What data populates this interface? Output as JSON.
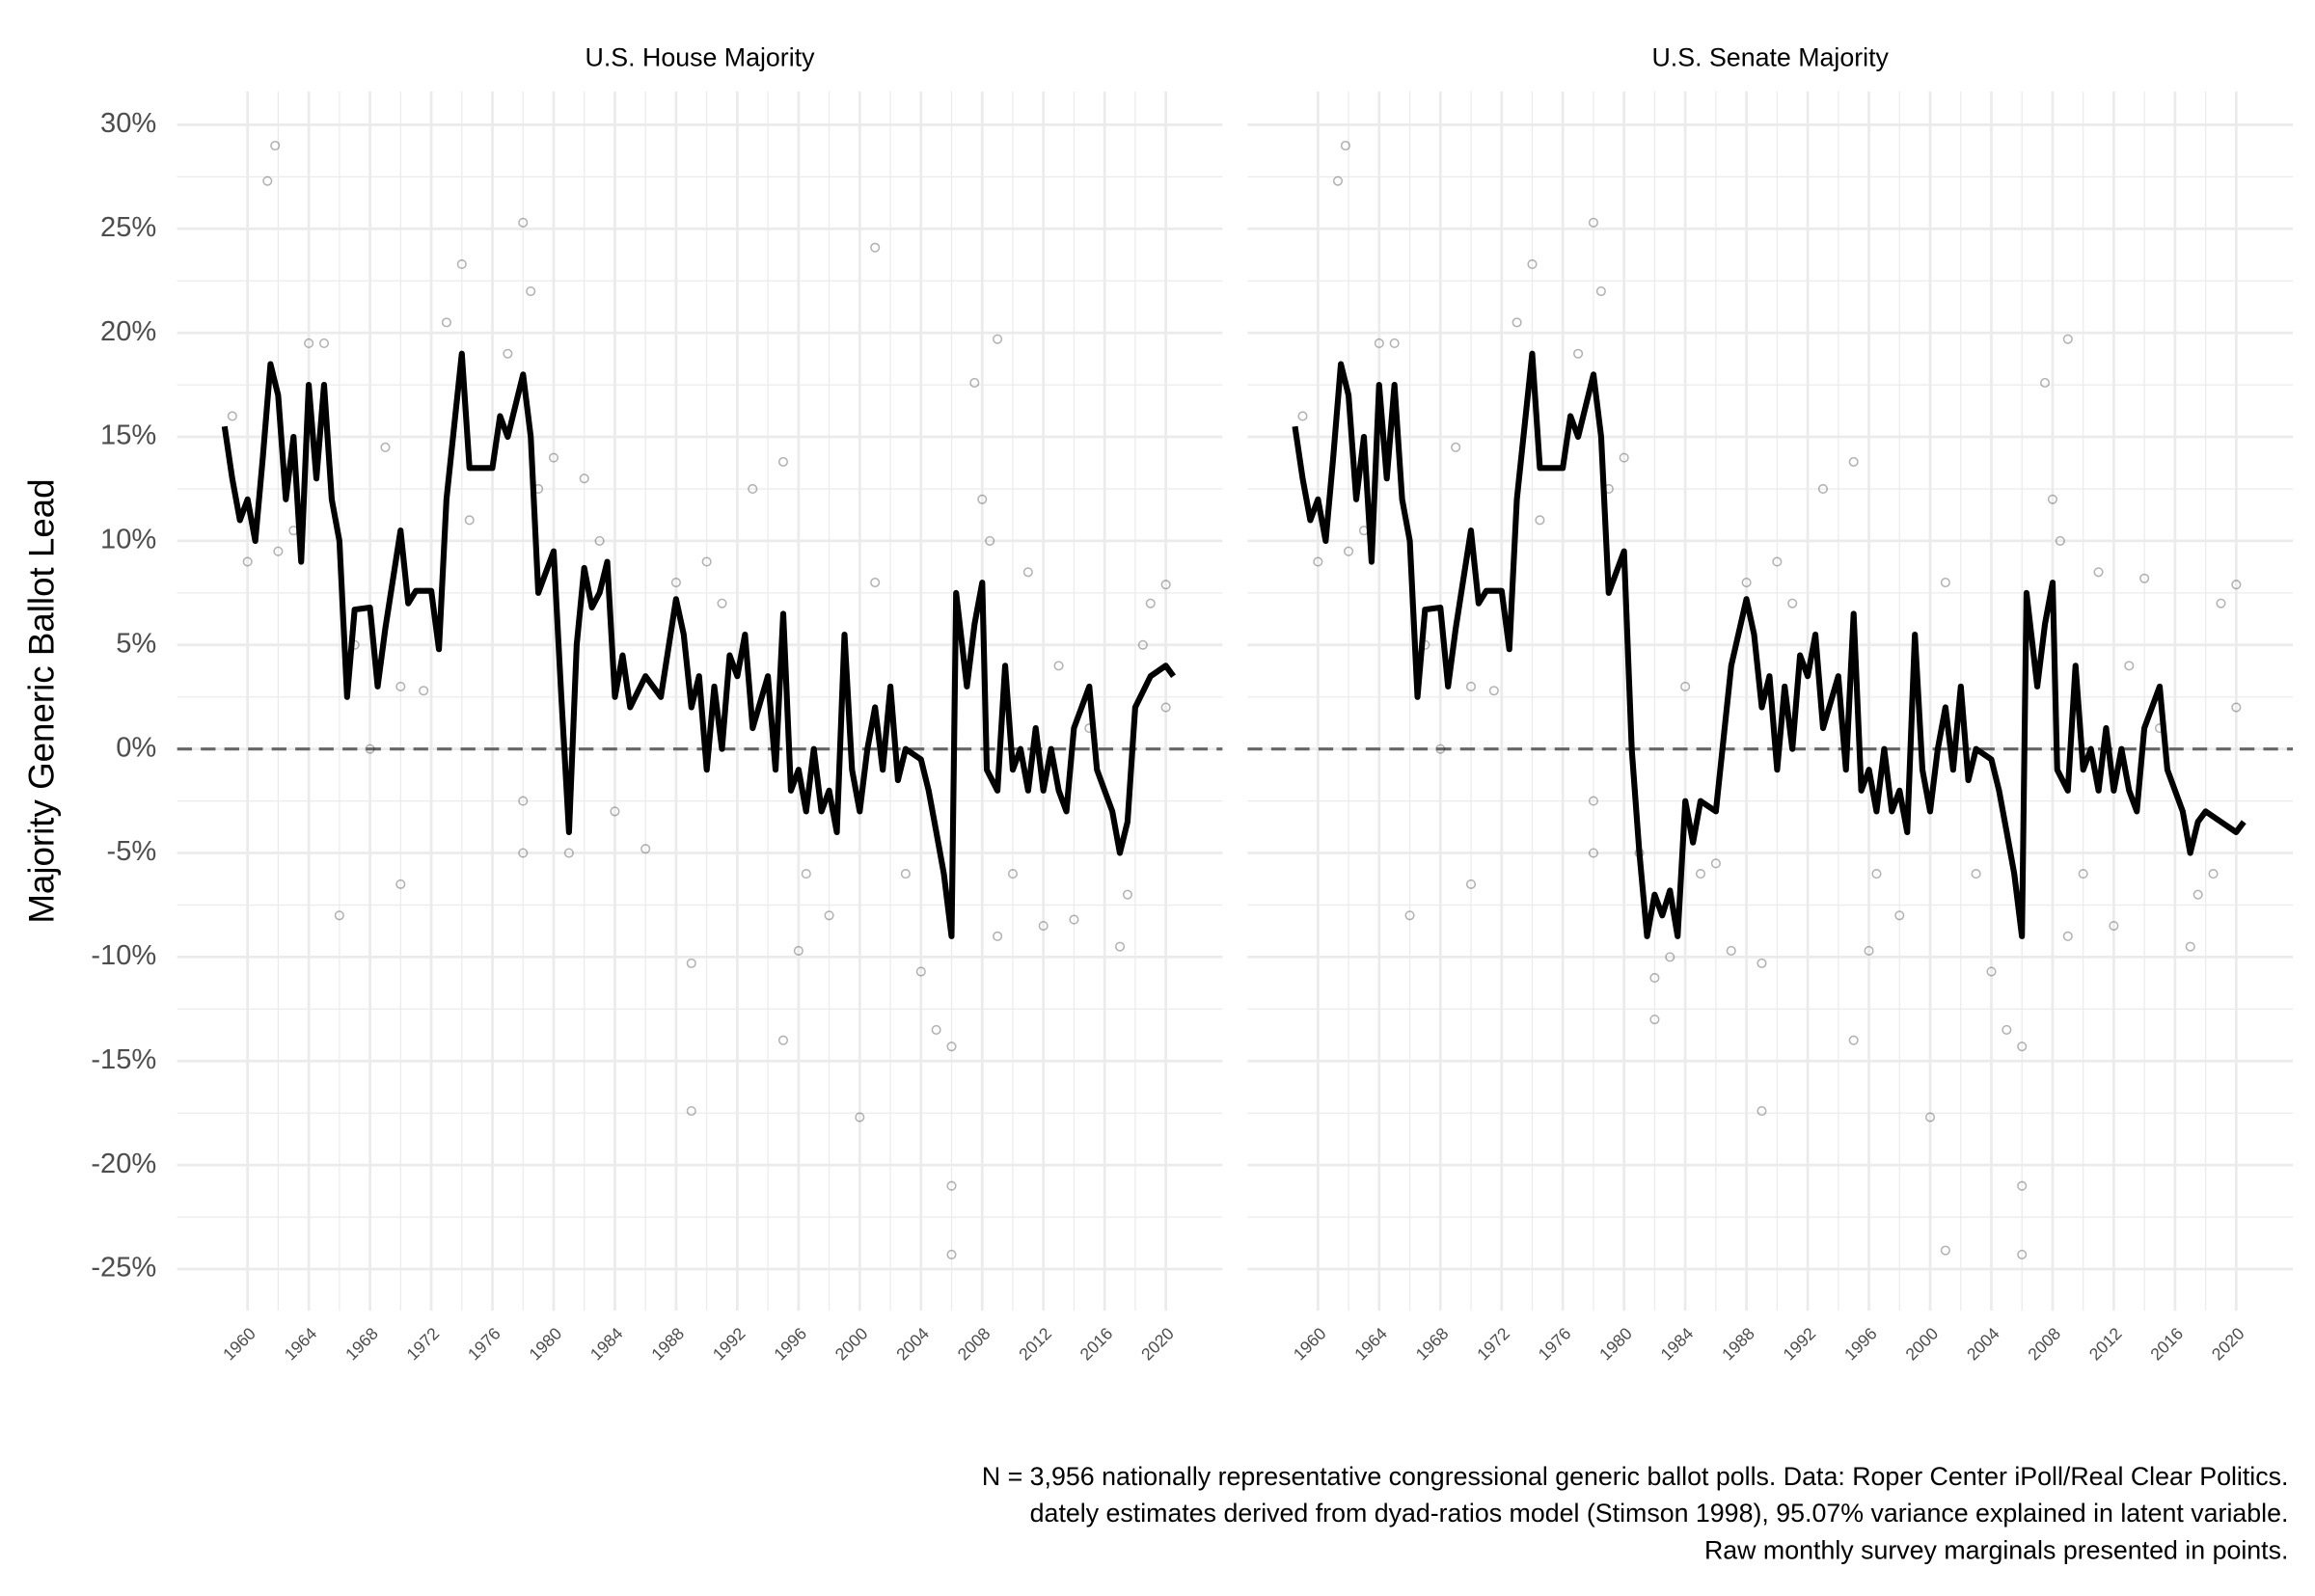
{
  "ylabel": "Majority Generic Ballot Lead",
  "caption": [
    "N = 3,956 nationally representative congressional generic ballot polls. Data: Roper Center iPoll/Real Clear Politics.",
    "dately estimates derived from dyad-ratios model (Stimson 1998), 95.07% variance explained in latent variable.",
    "Raw monthly survey marginals presented in points."
  ],
  "chart_data": [
    {
      "type": "line",
      "title": "U.S. House Majority",
      "xlim": [
        1955.4,
        2023.7
      ],
      "ylim": [
        -27,
        31.6
      ],
      "xticks": [
        1960,
        1964,
        1968,
        1972,
        1976,
        1980,
        1984,
        1988,
        1992,
        1996,
        2000,
        2004,
        2008,
        2012,
        2016,
        2020
      ],
      "yticks": [
        {
          "value": -25,
          "label": "-25%"
        },
        {
          "value": -20,
          "label": "-20%"
        },
        {
          "value": -15,
          "label": "-15%"
        },
        {
          "value": -10,
          "label": "-10%"
        },
        {
          "value": -5,
          "label": "-5%"
        },
        {
          "value": 0,
          "label": "0%"
        },
        {
          "value": 5,
          "label": "5%"
        },
        {
          "value": 10,
          "label": "10%"
        },
        {
          "value": 15,
          "label": "15%"
        },
        {
          "value": 20,
          "label": "20%"
        },
        {
          "value": 25,
          "label": "25%"
        },
        {
          "value": 30,
          "label": "30%"
        }
      ],
      "grid": true,
      "hline": 0,
      "line": {
        "color": "#000000",
        "x": [
          1958.5,
          1959,
          1959.5,
          1960,
          1960.5,
          1961,
          1961.5,
          1962,
          1962.5,
          1963,
          1963.5,
          1964,
          1964.5,
          1965,
          1965.5,
          1966,
          1966.5,
          1967,
          1968,
          1968.5,
          1969,
          1970,
          1970.5,
          1971,
          1972,
          1972.5,
          1973,
          1974,
          1974.5,
          1976,
          1976.5,
          1977,
          1978,
          1978.5,
          1979,
          1980,
          1980.5,
          1981,
          1981.5,
          1982,
          1982.5,
          1983,
          1983.5,
          1984,
          1984.5,
          1985,
          1986,
          1987,
          1988,
          1988.5,
          1989,
          1989.5,
          1990,
          1990.5,
          1991,
          1991.5,
          1992,
          1992.5,
          1993,
          1994,
          1994.5,
          1995,
          1995.5,
          1996,
          1996.5,
          1997,
          1997.5,
          1998,
          1998.5,
          1999,
          1999.5,
          2000,
          2000.5,
          2001,
          2001.5,
          2002,
          2002.5,
          2003,
          2004,
          2004.5,
          2005,
          2005.5,
          2006,
          2006.3,
          2007,
          2007.5,
          2008,
          2008.3,
          2009,
          2009.5,
          2010,
          2010.5,
          2011,
          2011.5,
          2012,
          2012.5,
          2013,
          2013.5,
          2014,
          2015,
          2015.5,
          2016,
          2016.5,
          2017,
          2017.5,
          2018,
          2019,
          2020,
          2020.5
        ],
        "values": [
          15.5,
          13,
          11,
          12,
          10,
          14,
          18.5,
          17,
          12,
          15,
          9,
          17.5,
          13,
          17.5,
          12,
          10,
          2.5,
          6.7,
          6.8,
          3,
          5.8,
          10.5,
          7,
          7.6,
          7.6,
          4.8,
          12,
          19,
          13.5,
          13.5,
          16,
          15,
          18,
          15,
          7.5,
          9.5,
          2.5,
          -4,
          5,
          8.7,
          6.8,
          7.5,
          9,
          2.5,
          4.5,
          2,
          3.5,
          2.5,
          7.2,
          5.5,
          2,
          3.5,
          -1,
          3,
          0,
          4.5,
          3.5,
          5.5,
          1,
          3.5,
          -1,
          6.5,
          -2,
          -1,
          -3,
          0,
          -3,
          -2,
          -4,
          5.5,
          -1,
          -3,
          0,
          2,
          -1,
          3,
          -1.5,
          0,
          -0.5,
          -2,
          -4,
          -6,
          -9,
          7.5,
          3,
          6,
          8,
          -1,
          -2,
          4,
          -1,
          0,
          -2,
          1,
          -2,
          0,
          -2,
          -3,
          1,
          3,
          -1,
          -2,
          -3,
          -5,
          -3.5,
          2,
          3.5,
          4,
          3.5
        ]
      },
      "points": {
        "color": "#000000",
        "x": [
          1959,
          1960,
          1961.3,
          1961.8,
          1962,
          1963,
          1964,
          1965,
          1966,
          1967,
          1968,
          1969,
          1970,
          1970,
          1971.5,
          1973,
          1974,
          1974.5,
          1977,
          1978,
          1978.5,
          1978,
          1978,
          1979,
          1980,
          1981,
          1982,
          1983,
          1984,
          1986,
          1988,
          1989,
          1989,
          1990,
          1991,
          1993,
          1995,
          1995,
          1996,
          1996.5,
          1998,
          2000,
          2001,
          2001,
          2002,
          2003,
          2004,
          2005,
          2006,
          2006,
          2006,
          2007.5,
          2008,
          2008.5,
          2009,
          2009,
          2010,
          2011,
          2012,
          2013,
          2014,
          2015,
          2017,
          2017.5,
          2018.5,
          2019,
          2020,
          2020
        ],
        "values": [
          16,
          9,
          27.3,
          29,
          9.5,
          10.5,
          19.5,
          19.5,
          -8,
          5,
          0,
          14.5,
          -6.5,
          3,
          2.8,
          20.5,
          23.3,
          11,
          19,
          25.3,
          22,
          -2.5,
          -5,
          12.5,
          14,
          -5,
          13,
          10,
          -3,
          -4.8,
          8,
          -10.3,
          -17.4,
          9,
          7,
          12.5,
          13.8,
          -14,
          -9.7,
          -6,
          -8,
          -17.7,
          24.1,
          8,
          2,
          -6,
          -10.7,
          -13.5,
          -21,
          -24.3,
          -14.3,
          17.6,
          12,
          10,
          19.7,
          -9,
          -6,
          8.5,
          -8.5,
          4,
          -8.2,
          1,
          -9.5,
          -7,
          5,
          7,
          7.9,
          2
        ]
      }
    },
    {
      "type": "line",
      "title": "U.S. Senate Majority",
      "xlim": [
        1955.4,
        2023.7
      ],
      "ylim": [
        -27,
        31.6
      ],
      "xticks": [
        1960,
        1964,
        1968,
        1972,
        1976,
        1980,
        1984,
        1988,
        1992,
        1996,
        2000,
        2004,
        2008,
        2012,
        2016,
        2020
      ],
      "grid": true,
      "hline": 0,
      "line": {
        "color": "#000000",
        "x": [
          1958.5,
          1959,
          1959.5,
          1960,
          1960.5,
          1961,
          1961.5,
          1962,
          1962.5,
          1963,
          1963.5,
          1964,
          1964.5,
          1965,
          1965.5,
          1966,
          1966.5,
          1967,
          1968,
          1968.5,
          1969,
          1970,
          1970.5,
          1971,
          1972,
          1972.5,
          1973,
          1974,
          1974.5,
          1976,
          1976.5,
          1977,
          1978,
          1978.5,
          1979,
          1980,
          1980.5,
          1981,
          1981.5,
          1982,
          1982.5,
          1983,
          1983.5,
          1984,
          1984.5,
          1985,
          1986,
          1987,
          1988,
          1988.5,
          1989,
          1989.5,
          1990,
          1990.5,
          1991,
          1991.5,
          1992,
          1992.5,
          1993,
          1994,
          1994.5,
          1995,
          1995.5,
          1996,
          1996.5,
          1997,
          1997.5,
          1998,
          1998.5,
          1999,
          1999.5,
          2000,
          2000.5,
          2001,
          2001.5,
          2002,
          2002.5,
          2003,
          2004,
          2004.5,
          2005,
          2005.5,
          2006,
          2006.3,
          2007,
          2007.5,
          2008,
          2008.3,
          2009,
          2009.5,
          2010,
          2010.5,
          2011,
          2011.5,
          2012,
          2012.5,
          2013,
          2013.5,
          2014,
          2015,
          2015.5,
          2016,
          2016.5,
          2017,
          2017.5,
          2018,
          2019,
          2020,
          2020.5
        ],
        "values": [
          15.5,
          13,
          11,
          12,
          10,
          14,
          18.5,
          17,
          12,
          15,
          9,
          17.5,
          13,
          17.5,
          12,
          10,
          2.5,
          6.7,
          6.8,
          3,
          5.8,
          10.5,
          7,
          7.6,
          7.6,
          4.8,
          12,
          19,
          13.5,
          13.5,
          16,
          15,
          18,
          15,
          7.5,
          9.5,
          0,
          -5,
          -9,
          -7,
          -8,
          -6.8,
          -9,
          -2.5,
          -4.5,
          -2.5,
          -3,
          4,
          7.2,
          5.5,
          2,
          3.5,
          -1,
          3,
          0,
          4.5,
          3.5,
          5.5,
          1,
          3.5,
          -1,
          6.5,
          -2,
          -1,
          -3,
          0,
          -3,
          -2,
          -4,
          5.5,
          -1,
          -3,
          0,
          2,
          -1,
          3,
          -1.5,
          0,
          -0.5,
          -2,
          -4,
          -6,
          -9,
          7.5,
          3,
          6,
          8,
          -1,
          -2,
          4,
          -1,
          0,
          -2,
          1,
          -2,
          0,
          -2,
          -3,
          1,
          3,
          -1,
          -2,
          -3,
          -5,
          -3.5,
          -3,
          -3.5,
          -4,
          -3.5
        ]
      },
      "points": {
        "color": "#000000",
        "x": [
          1959,
          1960,
          1961.3,
          1961.8,
          1962,
          1963,
          1964,
          1965,
          1966,
          1967,
          1968,
          1969,
          1970,
          1970,
          1971.5,
          1973,
          1974,
          1974.5,
          1977,
          1978,
          1978.5,
          1978,
          1978,
          1979,
          1980,
          1981,
          1982,
          1982,
          1983,
          1984,
          1985,
          1986,
          1987,
          1988,
          1989,
          1989,
          1990,
          1991,
          1993,
          1995,
          1995,
          1996,
          1996.5,
          1998,
          2000,
          2001,
          2001,
          2002,
          2003,
          2004,
          2005,
          2006,
          2006,
          2006,
          2007.5,
          2008,
          2008.5,
          2009,
          2009,
          2010,
          2011,
          2012,
          2013,
          2014,
          2015,
          2017,
          2017.5,
          2018.5,
          2019,
          2020,
          2020
        ],
        "values": [
          16,
          9,
          27.3,
          29,
          9.5,
          10.5,
          19.5,
          19.5,
          -8,
          5,
          0,
          14.5,
          -6.5,
          3,
          2.8,
          20.5,
          23.3,
          11,
          19,
          25.3,
          22,
          -2.5,
          -5,
          12.5,
          14,
          -5,
          -13,
          -11,
          -10,
          3,
          -6,
          -5.5,
          -9.7,
          8,
          -10.3,
          -17.4,
          9,
          7,
          12.5,
          13.8,
          -14,
          -9.7,
          -6,
          -8,
          -17.7,
          -24.1,
          8,
          2,
          -6,
          -10.7,
          -13.5,
          -21,
          -24.3,
          -14.3,
          17.6,
          12,
          10,
          19.7,
          -9,
          -6,
          8.5,
          -8.5,
          4,
          8.2,
          1,
          -9.5,
          -7,
          -6,
          7,
          7.9,
          2
        ]
      }
    }
  ]
}
